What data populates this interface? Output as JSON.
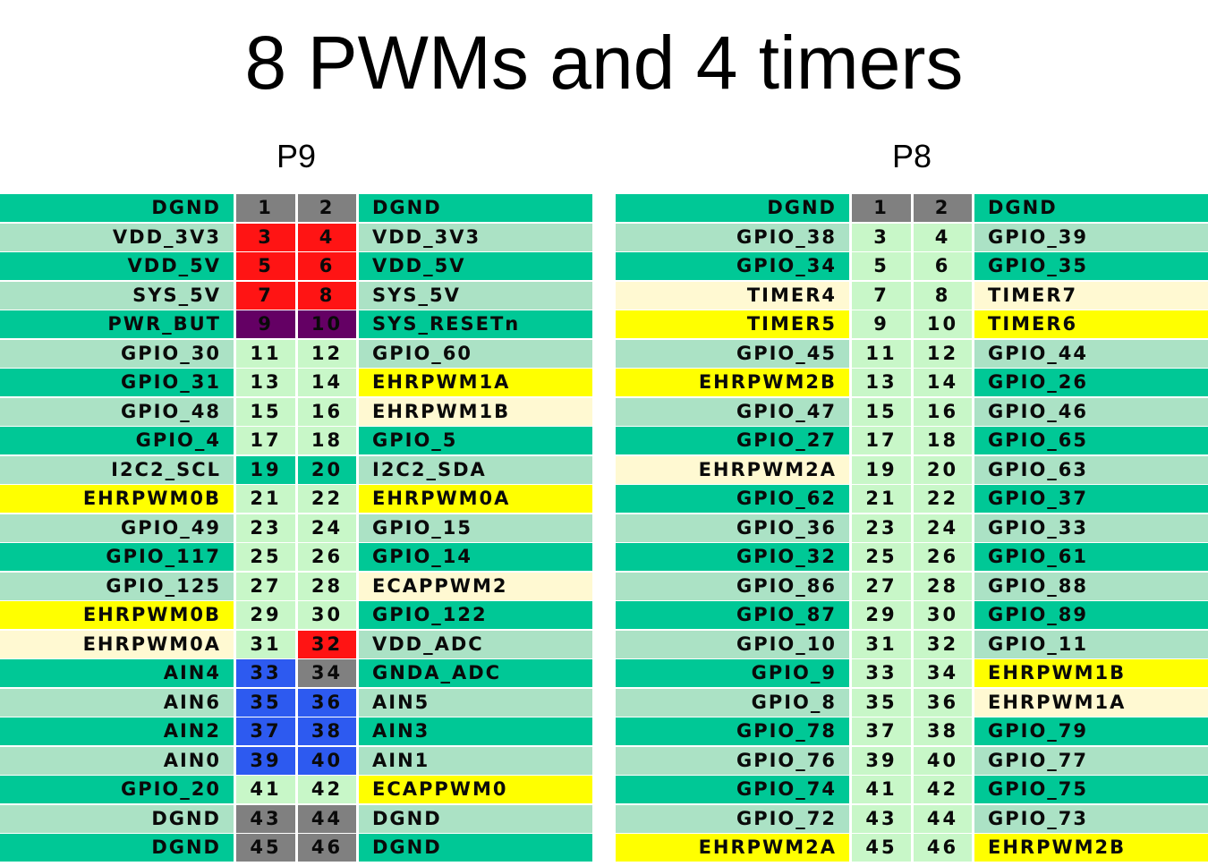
{
  "title": "8 PWMs and 4 timers",
  "colors": {
    "gnd": "#00c896",
    "light": "#abe2c5",
    "pinlight": "#c8f7c8",
    "yellow": "#ffff00",
    "cream": "#fff9d2",
    "gray": "#808080",
    "red": "#ff1414",
    "purple": "#640064",
    "blue": "#2d5af0",
    "teal": "#00c896"
  },
  "headers": [
    {
      "label": "P9",
      "rows": [
        {
          "left": "DGND",
          "pl": "1",
          "pr": "2",
          "right": "DGND",
          "lc": "gnd",
          "plc": "gray",
          "prc": "gray",
          "rc": "gnd"
        },
        {
          "left": "VDD_3V3",
          "pl": "3",
          "pr": "4",
          "right": "VDD_3V3",
          "lc": "light",
          "plc": "red",
          "prc": "red",
          "rc": "light"
        },
        {
          "left": "VDD_5V",
          "pl": "5",
          "pr": "6",
          "right": "VDD_5V",
          "lc": "gnd",
          "plc": "red",
          "prc": "red",
          "rc": "gnd"
        },
        {
          "left": "SYS_5V",
          "pl": "7",
          "pr": "8",
          "right": "SYS_5V",
          "lc": "light",
          "plc": "red",
          "prc": "red",
          "rc": "light"
        },
        {
          "left": "PWR_BUT",
          "pl": "9",
          "pr": "10",
          "right": "SYS_RESETn",
          "lc": "gnd",
          "plc": "purple",
          "prc": "purple",
          "rc": "gnd"
        },
        {
          "left": "GPIO_30",
          "pl": "11",
          "pr": "12",
          "right": "GPIO_60",
          "lc": "light",
          "plc": "pinlight",
          "prc": "pinlight",
          "rc": "light"
        },
        {
          "left": "GPIO_31",
          "pl": "13",
          "pr": "14",
          "right": "EHRPWM1A",
          "lc": "gnd",
          "plc": "pinlight",
          "prc": "pinlight",
          "rc": "yellow"
        },
        {
          "left": "GPIO_48",
          "pl": "15",
          "pr": "16",
          "right": "EHRPWM1B",
          "lc": "light",
          "plc": "pinlight",
          "prc": "pinlight",
          "rc": "cream"
        },
        {
          "left": "GPIO_4",
          "pl": "17",
          "pr": "18",
          "right": "GPIO_5",
          "lc": "gnd",
          "plc": "pinlight",
          "prc": "pinlight",
          "rc": "gnd"
        },
        {
          "left": "I2C2_SCL",
          "pl": "19",
          "pr": "20",
          "right": "I2C2_SDA",
          "lc": "light",
          "plc": "teal",
          "prc": "teal",
          "rc": "light"
        },
        {
          "left": "EHRPWM0B",
          "pl": "21",
          "pr": "22",
          "right": "EHRPWM0A",
          "lc": "yellow",
          "plc": "pinlight",
          "prc": "pinlight",
          "rc": "yellow"
        },
        {
          "left": "GPIO_49",
          "pl": "23",
          "pr": "24",
          "right": "GPIO_15",
          "lc": "light",
          "plc": "pinlight",
          "prc": "pinlight",
          "rc": "light"
        },
        {
          "left": "GPIO_117",
          "pl": "25",
          "pr": "26",
          "right": "GPIO_14",
          "lc": "gnd",
          "plc": "pinlight",
          "prc": "pinlight",
          "rc": "gnd"
        },
        {
          "left": "GPIO_125",
          "pl": "27",
          "pr": "28",
          "right": "ECAPPWM2",
          "lc": "light",
          "plc": "pinlight",
          "prc": "pinlight",
          "rc": "cream"
        },
        {
          "left": "EHRPWM0B",
          "pl": "29",
          "pr": "30",
          "right": "GPIO_122",
          "lc": "yellow",
          "plc": "pinlight",
          "prc": "pinlight",
          "rc": "gnd"
        },
        {
          "left": "EHRPWM0A",
          "pl": "31",
          "pr": "32",
          "right": "VDD_ADC",
          "lc": "cream",
          "plc": "pinlight",
          "prc": "red",
          "rc": "light"
        },
        {
          "left": "AIN4",
          "pl": "33",
          "pr": "34",
          "right": "GNDA_ADC",
          "lc": "gnd",
          "plc": "blue",
          "prc": "gray",
          "rc": "gnd"
        },
        {
          "left": "AIN6",
          "pl": "35",
          "pr": "36",
          "right": "AIN5",
          "lc": "light",
          "plc": "blue",
          "prc": "blue",
          "rc": "light"
        },
        {
          "left": "AIN2",
          "pl": "37",
          "pr": "38",
          "right": "AIN3",
          "lc": "gnd",
          "plc": "blue",
          "prc": "blue",
          "rc": "gnd"
        },
        {
          "left": "AIN0",
          "pl": "39",
          "pr": "40",
          "right": "AIN1",
          "lc": "light",
          "plc": "blue",
          "prc": "blue",
          "rc": "light"
        },
        {
          "left": "GPIO_20",
          "pl": "41",
          "pr": "42",
          "right": "ECAPPWM0",
          "lc": "gnd",
          "plc": "pinlight",
          "prc": "pinlight",
          "rc": "yellow"
        },
        {
          "left": "DGND",
          "pl": "43",
          "pr": "44",
          "right": "DGND",
          "lc": "light",
          "plc": "gray",
          "prc": "gray",
          "rc": "light"
        },
        {
          "left": "DGND",
          "pl": "45",
          "pr": "46",
          "right": "DGND",
          "lc": "gnd",
          "plc": "gray",
          "prc": "gray",
          "rc": "gnd"
        }
      ]
    },
    {
      "label": "P8",
      "rows": [
        {
          "left": "DGND",
          "pl": "1",
          "pr": "2",
          "right": "DGND",
          "lc": "gnd",
          "plc": "gray",
          "prc": "gray",
          "rc": "gnd"
        },
        {
          "left": "GPIO_38",
          "pl": "3",
          "pr": "4",
          "right": "GPIO_39",
          "lc": "light",
          "plc": "pinlight",
          "prc": "pinlight",
          "rc": "light"
        },
        {
          "left": "GPIO_34",
          "pl": "5",
          "pr": "6",
          "right": "GPIO_35",
          "lc": "gnd",
          "plc": "pinlight",
          "prc": "pinlight",
          "rc": "gnd"
        },
        {
          "left": "TIMER4",
          "pl": "7",
          "pr": "8",
          "right": "TIMER7",
          "lc": "cream",
          "plc": "pinlight",
          "prc": "pinlight",
          "rc": "cream"
        },
        {
          "left": "TIMER5",
          "pl": "9",
          "pr": "10",
          "right": "TIMER6",
          "lc": "yellow",
          "plc": "pinlight",
          "prc": "pinlight",
          "rc": "yellow"
        },
        {
          "left": "GPIO_45",
          "pl": "11",
          "pr": "12",
          "right": "GPIO_44",
          "lc": "light",
          "plc": "pinlight",
          "prc": "pinlight",
          "rc": "light"
        },
        {
          "left": "EHRPWM2B",
          "pl": "13",
          "pr": "14",
          "right": "GPIO_26",
          "lc": "yellow",
          "plc": "pinlight",
          "prc": "pinlight",
          "rc": "gnd"
        },
        {
          "left": "GPIO_47",
          "pl": "15",
          "pr": "16",
          "right": "GPIO_46",
          "lc": "light",
          "plc": "pinlight",
          "prc": "pinlight",
          "rc": "light"
        },
        {
          "left": "GPIO_27",
          "pl": "17",
          "pr": "18",
          "right": "GPIO_65",
          "lc": "gnd",
          "plc": "pinlight",
          "prc": "pinlight",
          "rc": "gnd"
        },
        {
          "left": "EHRPWM2A",
          "pl": "19",
          "pr": "20",
          "right": "GPIO_63",
          "lc": "cream",
          "plc": "pinlight",
          "prc": "pinlight",
          "rc": "light"
        },
        {
          "left": "GPIO_62",
          "pl": "21",
          "pr": "22",
          "right": "GPIO_37",
          "lc": "gnd",
          "plc": "pinlight",
          "prc": "pinlight",
          "rc": "gnd"
        },
        {
          "left": "GPIO_36",
          "pl": "23",
          "pr": "24",
          "right": "GPIO_33",
          "lc": "light",
          "plc": "pinlight",
          "prc": "pinlight",
          "rc": "light"
        },
        {
          "left": "GPIO_32",
          "pl": "25",
          "pr": "26",
          "right": "GPIO_61",
          "lc": "gnd",
          "plc": "pinlight",
          "prc": "pinlight",
          "rc": "gnd"
        },
        {
          "left": "GPIO_86",
          "pl": "27",
          "pr": "28",
          "right": "GPIO_88",
          "lc": "light",
          "plc": "pinlight",
          "prc": "pinlight",
          "rc": "light"
        },
        {
          "left": "GPIO_87",
          "pl": "29",
          "pr": "30",
          "right": "GPIO_89",
          "lc": "gnd",
          "plc": "pinlight",
          "prc": "pinlight",
          "rc": "gnd"
        },
        {
          "left": "GPIO_10",
          "pl": "31",
          "pr": "32",
          "right": "GPIO_11",
          "lc": "light",
          "plc": "pinlight",
          "prc": "pinlight",
          "rc": "light"
        },
        {
          "left": "GPIO_9",
          "pl": "33",
          "pr": "34",
          "right": "EHRPWM1B",
          "lc": "gnd",
          "plc": "pinlight",
          "prc": "pinlight",
          "rc": "yellow"
        },
        {
          "left": "GPIO_8",
          "pl": "35",
          "pr": "36",
          "right": "EHRPWM1A",
          "lc": "light",
          "plc": "pinlight",
          "prc": "pinlight",
          "rc": "cream"
        },
        {
          "left": "GPIO_78",
          "pl": "37",
          "pr": "38",
          "right": "GPIO_79",
          "lc": "gnd",
          "plc": "pinlight",
          "prc": "pinlight",
          "rc": "gnd"
        },
        {
          "left": "GPIO_76",
          "pl": "39",
          "pr": "40",
          "right": "GPIO_77",
          "lc": "light",
          "plc": "pinlight",
          "prc": "pinlight",
          "rc": "light"
        },
        {
          "left": "GPIO_74",
          "pl": "41",
          "pr": "42",
          "right": "GPIO_75",
          "lc": "gnd",
          "plc": "pinlight",
          "prc": "pinlight",
          "rc": "gnd"
        },
        {
          "left": "GPIO_72",
          "pl": "43",
          "pr": "44",
          "right": "GPIO_73",
          "lc": "light",
          "plc": "pinlight",
          "prc": "pinlight",
          "rc": "light"
        },
        {
          "left": "EHRPWM2A",
          "pl": "45",
          "pr": "46",
          "right": "EHRPWM2B",
          "lc": "yellow",
          "plc": "pinlight",
          "prc": "pinlight",
          "rc": "yellow"
        }
      ]
    }
  ]
}
